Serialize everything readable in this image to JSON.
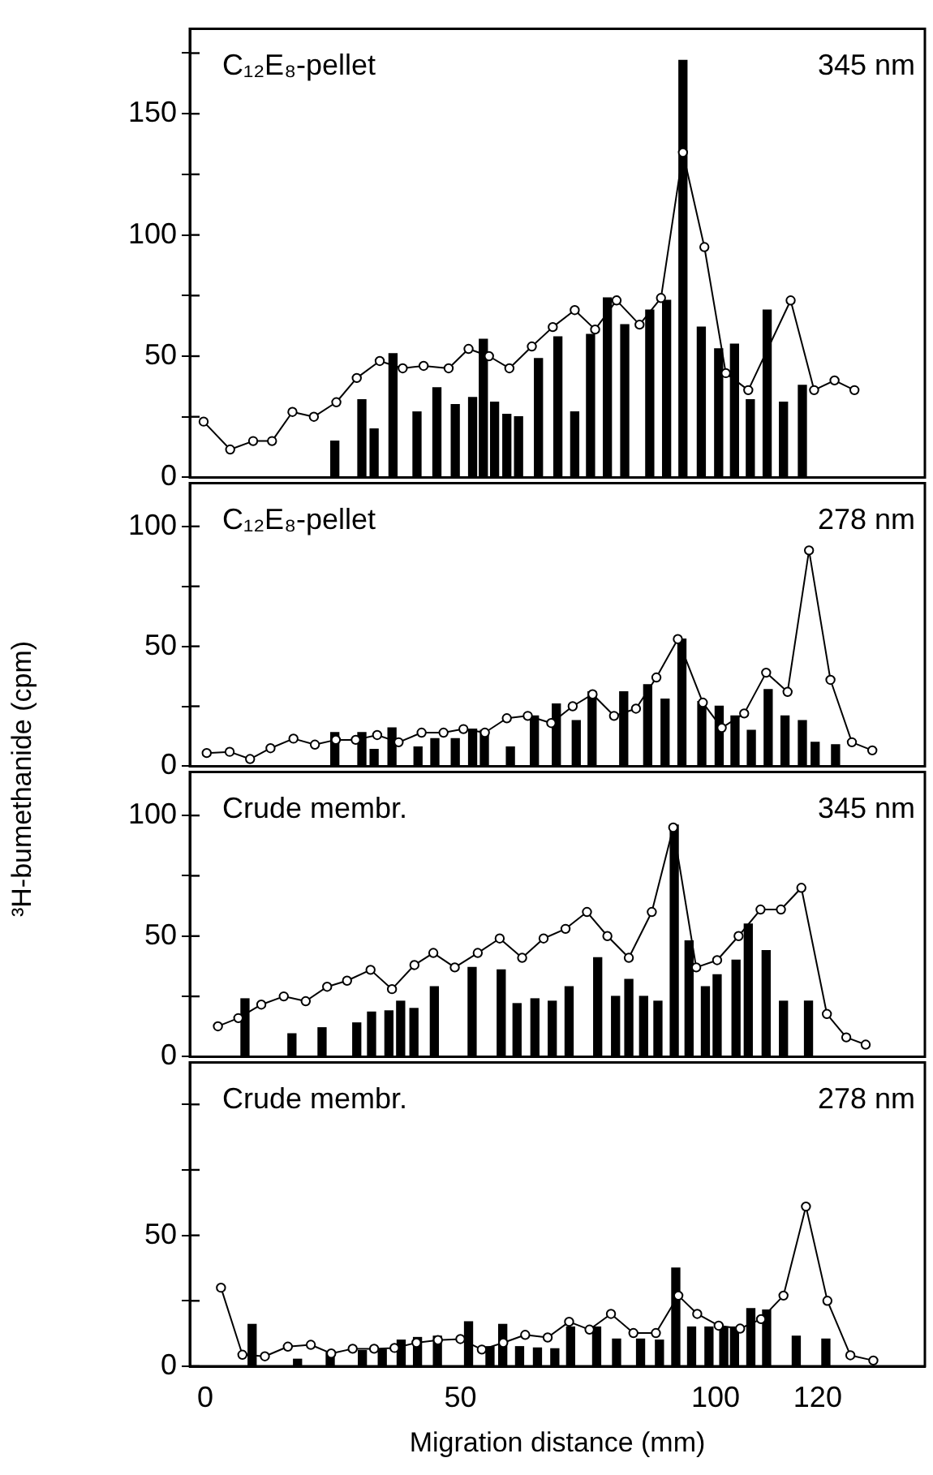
{
  "chart_data": [
    {
      "type": "bar",
      "annotations": [
        "C₁₂E₈-pellet",
        "345 nm"
      ],
      "xlim": [
        -3,
        141
      ],
      "xticks": [
        0,
        50,
        100,
        120
      ],
      "ylim": [
        0,
        185
      ],
      "yticks": [
        0,
        {
          "value": 25,
          "label": null
        },
        50,
        {
          "value": 75,
          "label": null
        },
        100,
        {
          "value": 125,
          "label": null
        },
        150,
        {
          "value": 175,
          "label": null
        }
      ],
      "tick_labels": "y",
      "grid": false,
      "legend": false,
      "marker": "circle",
      "line_style": "solid",
      "series": [
        {
          "color": "#000000",
          "x": [
            25.4,
            30.7,
            33.1,
            36.8,
            41.5,
            45.4,
            49.0,
            52.4,
            54.5,
            56.7,
            59.1,
            61.4,
            65.3,
            69.1,
            72.4,
            75.5,
            78.8,
            82.2,
            87.1,
            90.4,
            93.6,
            97.2,
            100.6,
            103.7,
            106.8,
            110.1,
            113.3,
            117.0
          ],
          "values": [
            15,
            32,
            20,
            51,
            27,
            37,
            30,
            33,
            57,
            31,
            26,
            25,
            49,
            58,
            27,
            59,
            74,
            63,
            69,
            73,
            172,
            62,
            53,
            55,
            32,
            69,
            31,
            38
          ]
        },
        {
          "type": "line",
          "color": "#000000",
          "x": [
            -0.3,
            4.9,
            9.4,
            13.1,
            17.1,
            21.3,
            25.7,
            29.7,
            34.2,
            38.7,
            42.8,
            47.7,
            51.6,
            55.6,
            59.6,
            64.0,
            68.1,
            72.4,
            76.4,
            80.6,
            85.1,
            89.3,
            93.6,
            97.8,
            102.0,
            106.4,
            114.7,
            119.3,
            123.3,
            127.2
          ],
          "values": [
            23,
            11.5,
            15,
            15,
            27,
            25,
            31,
            41,
            48,
            45,
            46,
            45,
            53,
            50,
            45,
            54,
            62,
            69,
            61,
            73,
            63,
            74,
            134,
            95,
            43,
            36,
            73,
            36,
            40,
            36
          ]
        }
      ]
    },
    {
      "type": "bar",
      "annotations": [
        "C₁₂E₈-pellet",
        "278 nm"
      ],
      "ylabel": "³H-bumethanide (cpm)",
      "xlim": [
        -3,
        141
      ],
      "xticks": [
        0,
        50,
        100,
        120
      ],
      "ylim": [
        0,
        118
      ],
      "yticks": [
        0,
        {
          "value": 25,
          "label": null
        },
        50,
        {
          "value": 75,
          "label": null
        },
        100
      ],
      "tick_labels": "y",
      "grid": false,
      "legend": false,
      "marker": "circle",
      "line_style": "solid",
      "series": [
        {
          "color": "#000000",
          "x": [
            25.4,
            30.7,
            33.1,
            36.6,
            41.7,
            45.0,
            49.0,
            52.4,
            54.7,
            59.8,
            64.5,
            68.8,
            72.7,
            75.8,
            82.0,
            86.7,
            90.1,
            93.4,
            97.3,
            100.7,
            103.8,
            107.0,
            110.3,
            113.6,
            117.0,
            119.5,
            123.5
          ],
          "values": [
            14,
            14,
            7,
            16,
            8,
            11.5,
            11.5,
            15.5,
            15,
            8,
            21,
            26,
            19,
            31,
            31,
            34,
            28,
            53,
            27,
            25,
            21,
            15,
            32,
            21,
            19,
            10,
            9
          ]
        },
        {
          "type": "line",
          "color": "#000000",
          "x": [
            0.3,
            4.8,
            8.8,
            12.8,
            17.3,
            21.5,
            25.6,
            29.5,
            33.7,
            37.9,
            42.4,
            46.7,
            50.6,
            54.8,
            59.1,
            63.2,
            67.8,
            72.0,
            75.9,
            80.1,
            84.4,
            88.4,
            92.6,
            97.5,
            101.2,
            105.6,
            109.9,
            114.1,
            118.3,
            122.5,
            126.7,
            130.7
          ],
          "values": [
            5.5,
            6,
            3,
            7.5,
            11.5,
            9,
            11,
            11,
            13,
            10,
            14,
            14,
            15.5,
            14,
            20,
            21,
            18,
            25,
            30,
            21,
            24,
            37,
            53,
            26.5,
            16,
            22,
            39,
            31,
            90,
            36,
            10,
            6.6
          ]
        }
      ]
    },
    {
      "type": "bar",
      "annotations": [
        "Crude membr.",
        "345 nm"
      ],
      "xlim": [
        -3,
        141
      ],
      "xticks": [
        0,
        50,
        100,
        120
      ],
      "ylim": [
        0,
        118
      ],
      "yticks": [
        0,
        {
          "value": 25,
          "label": null
        },
        50,
        {
          "value": 75,
          "label": null
        },
        100
      ],
      "tick_labels": "y",
      "grid": false,
      "legend": false,
      "marker": "circle",
      "line_style": "solid",
      "series": [
        {
          "color": "#000000",
          "x": [
            7.8,
            17.0,
            22.9,
            29.7,
            32.6,
            36.0,
            38.3,
            40.9,
            44.9,
            52.3,
            58.0,
            61.1,
            64.6,
            68.0,
            71.3,
            76.9,
            80.4,
            83.0,
            85.9,
            88.7,
            91.9,
            94.8,
            98.0,
            100.3,
            104.0,
            106.4,
            109.9,
            113.3,
            118.2
          ],
          "values": [
            24,
            9.5,
            12,
            14,
            18.5,
            19,
            23,
            20,
            29,
            37,
            36,
            22,
            24,
            23,
            29,
            41,
            25,
            32,
            25,
            23,
            96,
            48,
            29,
            34,
            40,
            55,
            44,
            23,
            23
          ]
        },
        {
          "type": "line",
          "color": "#000000",
          "x": [
            2.5,
            6.5,
            11.0,
            15.4,
            19.7,
            23.9,
            27.8,
            32.4,
            36.6,
            41.0,
            44.7,
            48.9,
            53.4,
            57.7,
            62.1,
            66.3,
            70.6,
            74.8,
            78.8,
            83.0,
            87.5,
            91.7,
            96.2,
            100.3,
            104.5,
            108.8,
            112.8,
            116.8,
            121.8,
            125.6,
            129.4
          ],
          "values": [
            12.6,
            16,
            21.6,
            25,
            23,
            29,
            31.5,
            36,
            28,
            38,
            43,
            37,
            43,
            49,
            41,
            49,
            53,
            60,
            50,
            41,
            60,
            95,
            37,
            40,
            50,
            61,
            61,
            70,
            17.7,
            8,
            5
          ]
        }
      ]
    },
    {
      "type": "bar",
      "annotations": [
        "Crude membr.",
        "278 nm"
      ],
      "xlabel": "Migration distance (mm)",
      "xlim": [
        -3,
        141
      ],
      "xticks": [
        0,
        50,
        100,
        120
      ],
      "ylim": [
        0,
        116
      ],
      "yticks": [
        0,
        {
          "value": 25,
          "label": null
        },
        50,
        {
          "value": 75,
          "label": null
        },
        {
          "value": 100,
          "label": null
        }
      ],
      "grid": false,
      "legend": false,
      "marker": "circle",
      "line_style": "solid",
      "series": [
        {
          "color": "#000000",
          "x": [
            9.2,
            18.1,
            24.5,
            30.8,
            34.7,
            38.4,
            41.6,
            45.5,
            51.6,
            55.8,
            58.3,
            61.6,
            65.1,
            68.5,
            71.6,
            76.7,
            80.6,
            85.3,
            89.0,
            92.2,
            95.3,
            98.7,
            101.6,
            103.7,
            106.9,
            110.0,
            115.8,
            121.6
          ],
          "values": [
            16,
            2.7,
            5.3,
            6,
            6.4,
            10,
            11,
            11.5,
            17,
            7.5,
            16,
            7.5,
            7,
            6.7,
            15,
            15,
            10.4,
            10.4,
            10,
            37.5,
            15,
            15,
            15,
            15,
            22,
            21.5,
            11.5,
            10.4
          ]
        },
        {
          "type": "line",
          "color": "#000000",
          "x": [
            3.1,
            7.3,
            11.7,
            16.2,
            20.7,
            24.7,
            28.9,
            33.1,
            37.1,
            41.4,
            45.6,
            50.0,
            54.2,
            58.4,
            62.7,
            67.1,
            71.3,
            75.3,
            79.5,
            83.9,
            88.3,
            92.7,
            96.4,
            100.6,
            104.8,
            108.9,
            113.3,
            117.7,
            121.9,
            126.4,
            130.9
          ],
          "values": [
            30,
            4.4,
            3.8,
            7.5,
            8.2,
            4.9,
            6.7,
            6.7,
            7,
            9,
            10,
            10.4,
            6.4,
            9,
            12,
            11,
            17,
            14,
            20,
            12.7,
            12.7,
            27,
            20,
            15.5,
            14.4,
            18,
            27,
            61,
            25,
            4.2,
            2.2
          ]
        }
      ]
    }
  ]
}
